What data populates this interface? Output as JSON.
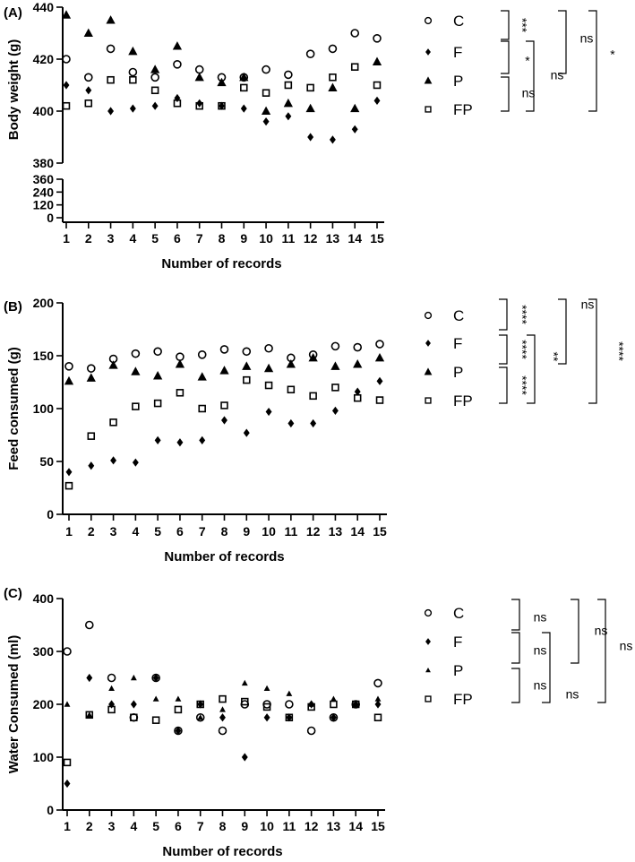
{
  "chart_data": [
    {
      "type": "scatter",
      "panel_label": "(A)",
      "ylabel": "Body weight (g)",
      "xlabel": "Number of records",
      "x": [
        1,
        2,
        3,
        4,
        5,
        6,
        7,
        8,
        9,
        10,
        11,
        12,
        13,
        14,
        15
      ],
      "xticks": [
        "1",
        "2",
        "3",
        "4",
        "5",
        "6",
        "7",
        "8",
        "9",
        "10",
        "11",
        "12",
        "13",
        "14",
        "15"
      ],
      "axis_break": true,
      "lower_yticks": [
        "0",
        "120",
        "240",
        "360"
      ],
      "upper_yticks": [
        "380",
        "400",
        "420",
        "440"
      ],
      "upper_ylim": [
        380,
        440
      ],
      "grid": false,
      "legend_position": "right",
      "series": [
        {
          "name": "C",
          "marker": "circle",
          "values": [
            420,
            413,
            424,
            415,
            413,
            418,
            416,
            413,
            413,
            416,
            414,
            422,
            424,
            430,
            428
          ]
        },
        {
          "name": "F",
          "marker": "diamond",
          "values": [
            410,
            408,
            400,
            401,
            402,
            405,
            403,
            402,
            401,
            396,
            398,
            390,
            389,
            393,
            404
          ]
        },
        {
          "name": "P",
          "marker": "triangle",
          "values": [
            437,
            430,
            435,
            423,
            416,
            425,
            413,
            411,
            413,
            400,
            403,
            401,
            409,
            401,
            419
          ]
        },
        {
          "name": "FP",
          "marker": "square",
          "values": [
            402,
            403,
            412,
            412,
            408,
            403,
            402,
            402,
            409,
            407,
            410,
            409,
            413,
            417,
            410
          ]
        }
      ],
      "significance": [
        {
          "pair": "C-F",
          "label": "***"
        },
        {
          "pair": "F-P",
          "label": "*"
        },
        {
          "pair": "P-FP",
          "label": "ns"
        },
        {
          "pair": "F-FP",
          "label": "ns"
        },
        {
          "pair": "C-P",
          "label": "ns"
        },
        {
          "pair": "C-FP",
          "label": "*"
        }
      ]
    },
    {
      "type": "scatter",
      "panel_label": "(B)",
      "ylabel": "Feed consumed (g)",
      "xlabel": "Number of records",
      "x": [
        1,
        2,
        3,
        4,
        5,
        6,
        7,
        8,
        9,
        10,
        11,
        12,
        13,
        14,
        15
      ],
      "xticks": [
        "1",
        "2",
        "3",
        "4",
        "5",
        "6",
        "7",
        "8",
        "9",
        "10",
        "11",
        "12",
        "13",
        "14",
        "15"
      ],
      "yticks": [
        "0",
        "50",
        "100",
        "150",
        "200"
      ],
      "ylim": [
        0,
        200
      ],
      "grid": false,
      "legend_position": "right",
      "series": [
        {
          "name": "C",
          "marker": "circle",
          "values": [
            140,
            138,
            147,
            152,
            154,
            149,
            151,
            156,
            154,
            157,
            148,
            151,
            159,
            158,
            161
          ]
        },
        {
          "name": "F",
          "marker": "diamond",
          "values": [
            40,
            46,
            51,
            49,
            70,
            68,
            70,
            89,
            77,
            97,
            86,
            86,
            98,
            116,
            126
          ]
        },
        {
          "name": "P",
          "marker": "triangle",
          "values": [
            126,
            129,
            141,
            135,
            131,
            142,
            130,
            136,
            140,
            138,
            142,
            148,
            140,
            142,
            148
          ]
        },
        {
          "name": "FP",
          "marker": "square",
          "values": [
            27,
            74,
            87,
            102,
            105,
            115,
            100,
            103,
            127,
            122,
            118,
            112,
            120,
            110,
            108
          ]
        }
      ],
      "significance": [
        {
          "pair": "C-F",
          "label": "****"
        },
        {
          "pair": "F-P",
          "label": "****"
        },
        {
          "pair": "P-FP",
          "label": "****"
        },
        {
          "pair": "F-FP",
          "label": "**"
        },
        {
          "pair": "C-P",
          "label": "ns"
        },
        {
          "pair": "C-FP",
          "label": "****"
        }
      ]
    },
    {
      "type": "scatter",
      "panel_label": "(C)",
      "ylabel": "Water Consumed (ml)",
      "xlabel": "Number of records",
      "x": [
        1,
        2,
        3,
        4,
        5,
        6,
        7,
        8,
        9,
        10,
        11,
        12,
        13,
        14,
        15
      ],
      "xticks": [
        "1",
        "2",
        "3",
        "4",
        "5",
        "6",
        "7",
        "8",
        "9",
        "10",
        "11",
        "12",
        "13",
        "14",
        "15"
      ],
      "yticks": [
        "0",
        "100",
        "200",
        "300",
        "400"
      ],
      "ylim": [
        0,
        400
      ],
      "grid": false,
      "legend_position": "right",
      "series": [
        {
          "name": "C",
          "marker": "circle",
          "values": [
            300,
            350,
            250,
            175,
            250,
            150,
            175,
            150,
            200,
            200,
            200,
            150,
            175,
            200,
            240
          ]
        },
        {
          "name": "F",
          "marker": "diamond",
          "values": [
            50,
            250,
            200,
            200,
            250,
            150,
            200,
            175,
            100,
            175,
            175,
            200,
            175,
            200,
            200
          ]
        },
        {
          "name": "P",
          "marker": "triangle",
          "values": [
            200,
            180,
            230,
            250,
            210,
            210,
            175,
            190,
            240,
            230,
            220,
            200,
            210,
            200,
            210
          ]
        },
        {
          "name": "FP",
          "marker": "square",
          "values": [
            90,
            180,
            190,
            175,
            170,
            190,
            200,
            210,
            205,
            195,
            175,
            195,
            200,
            200,
            175
          ]
        }
      ],
      "significance": [
        {
          "pair": "C-F",
          "label": "ns"
        },
        {
          "pair": "F-P",
          "label": "ns"
        },
        {
          "pair": "P-FP",
          "label": "ns"
        },
        {
          "pair": "F-FP",
          "label": "ns"
        },
        {
          "pair": "C-P",
          "label": "ns"
        },
        {
          "pair": "C-FP",
          "label": "ns"
        }
      ]
    }
  ]
}
